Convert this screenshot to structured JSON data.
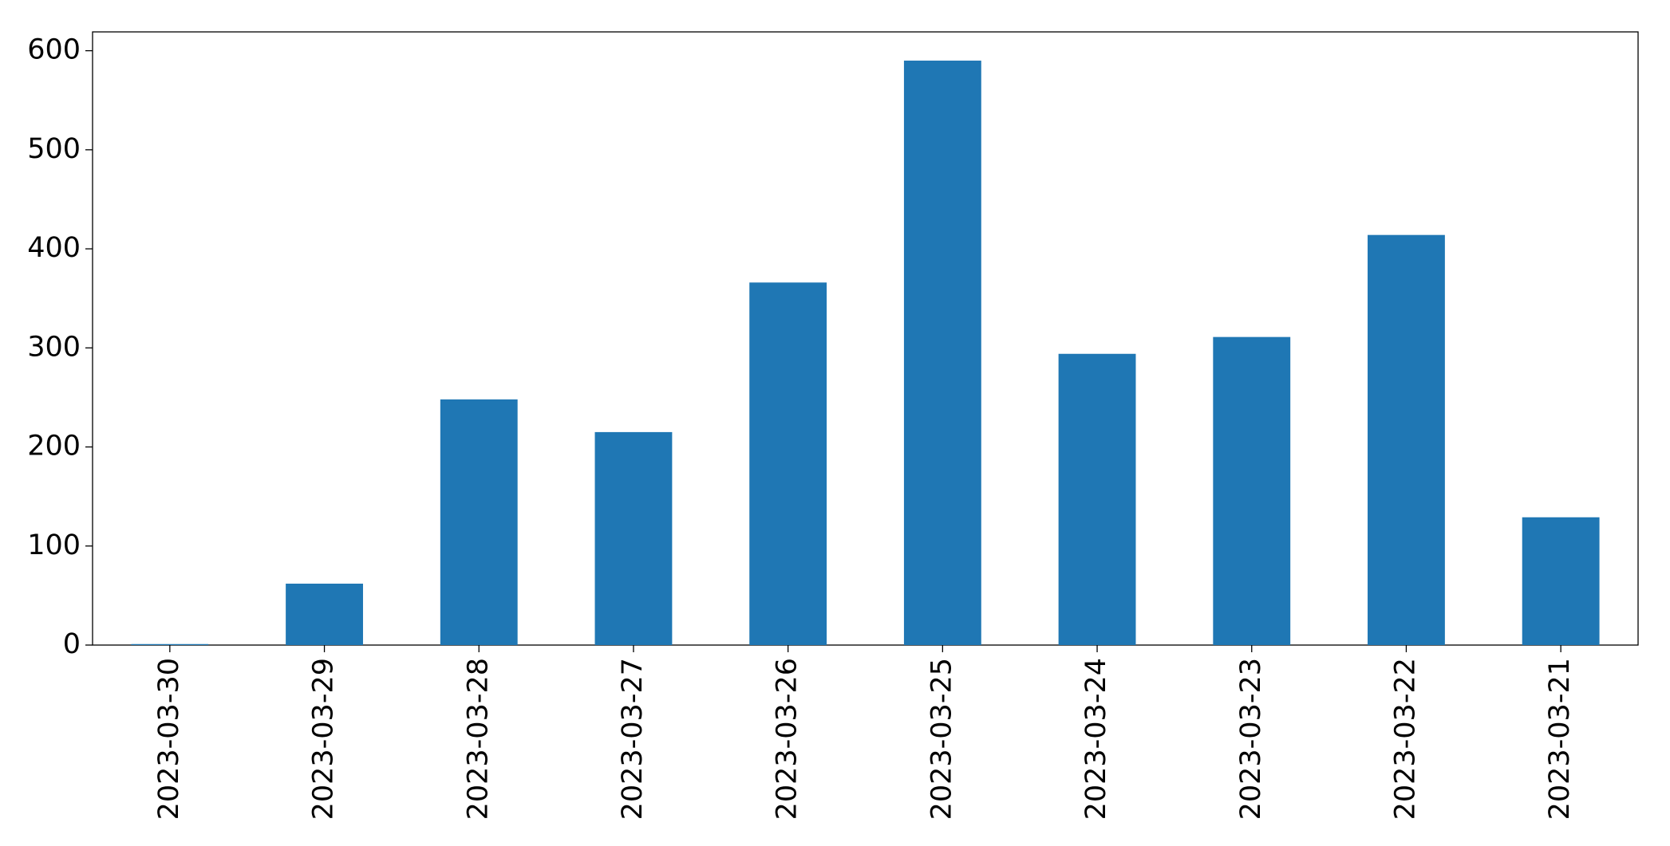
{
  "chart_data": {
    "type": "bar",
    "categories": [
      "2023-03-30",
      "2023-03-29",
      "2023-03-28",
      "2023-03-27",
      "2023-03-26",
      "2023-03-25",
      "2023-03-24",
      "2023-03-23",
      "2023-03-22",
      "2023-03-21"
    ],
    "values": [
      1,
      62,
      248,
      215,
      366,
      590,
      294,
      311,
      414,
      129
    ],
    "color": "#1f77b4",
    "ylim": [
      0,
      619
    ],
    "yticks": [
      0,
      100,
      200,
      300,
      400,
      500,
      600
    ],
    "grid": false
  }
}
